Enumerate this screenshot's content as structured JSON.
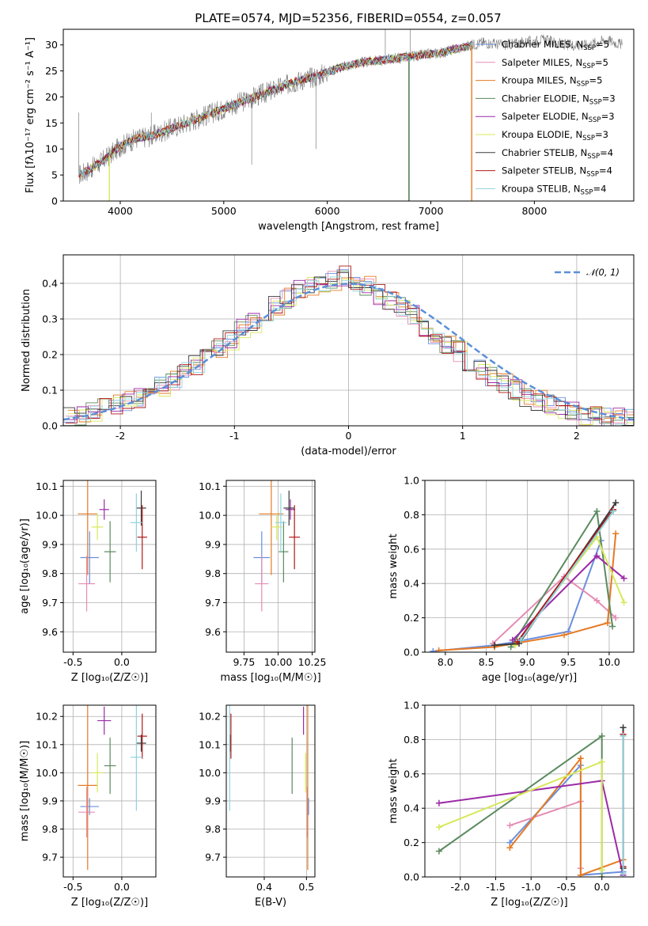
{
  "title": "PLATE=0574, MJD=52356, FIBERID=0554, z=0.057",
  "colors": {
    "data": "#7f7f7f",
    "models": [
      "#6a8fde",
      "#e58cb3",
      "#e67a22",
      "#5b8a5f",
      "#9b2aa6",
      "#d7e85a",
      "#3a3a3a",
      "#b01818",
      "#8fd3dc"
    ],
    "gauss": "#5b8fd8"
  },
  "chart_data": [
    {
      "name": "spectrum",
      "type": "line",
      "title": "PLATE=0574, MJD=52356, FIBERID=0554, z=0.057",
      "xlabel": "wavelength [Angstrom, rest frame]",
      "ylabel": "Flux [fλ10⁻¹⁷ erg cm⁻² s⁻¹ A⁻¹]",
      "xlim": [
        3450,
        8960
      ],
      "ylim": [
        0,
        33
      ],
      "xticks": [
        4000,
        5000,
        6000,
        7000,
        8000
      ],
      "yticks": [
        0,
        5,
        10,
        15,
        20,
        25,
        30
      ],
      "legend_position": "right",
      "legend": [
        "Chabrier MILES, N_SSP=5",
        "Salpeter MILES, N_SSP=5",
        "Kroupa MILES, N_SSP=5",
        "Chabrier ELODIE, N_SSP=3",
        "Salpeter ELODIE, N_SSP=3",
        "Kroupa ELODIE, N_SSP=3",
        "Chabrier STELIB, N_SSP=4",
        "Salpeter STELIB, N_SSP=4",
        "Kroupa STELIB, N_SSP=4"
      ],
      "legend_main": [
        "Chabrier MILES, N",
        "Salpeter MILES, N",
        "Kroupa MILES, N",
        "Chabrier ELODIE, N",
        "Salpeter ELODIE, N",
        "Kroupa ELODIE, N",
        "Chabrier STELIB, N",
        "Salpeter STELIB, N",
        "Kroupa STELIB, N"
      ],
      "legend_sub": "SSP",
      "legend_tail": [
        "=5",
        "=5",
        "=5",
        "=3",
        "=3",
        "=3",
        "=4",
        "=4",
        "=4"
      ],
      "continuum": [
        [
          3600,
          5
        ],
        [
          3700,
          6
        ],
        [
          3850,
          8
        ],
        [
          4000,
          10.5
        ],
        [
          4150,
          12
        ],
        [
          4300,
          12.5
        ],
        [
          4500,
          14
        ],
        [
          4700,
          15.5
        ],
        [
          4900,
          17
        ],
        [
          5100,
          18.5
        ],
        [
          5300,
          20
        ],
        [
          5500,
          21.5
        ],
        [
          5700,
          23
        ],
        [
          5900,
          24
        ],
        [
          6100,
          25.5
        ],
        [
          6300,
          26.5
        ],
        [
          6500,
          27
        ],
        [
          6700,
          27.5
        ],
        [
          6900,
          28
        ],
        [
          7100,
          28.5
        ],
        [
          7300,
          29.5
        ],
        [
          7500,
          30.5
        ],
        [
          7700,
          30
        ],
        [
          7900,
          30.5
        ],
        [
          8100,
          31
        ],
        [
          8300,
          30
        ],
        [
          8500,
          30
        ],
        [
          8700,
          31
        ],
        [
          8850,
          30
        ]
      ]
    },
    {
      "name": "residuals",
      "type": "histogram",
      "xlabel": "(data-model)/error",
      "ylabel": "Normed distribution",
      "xlim": [
        -2.5,
        2.5
      ],
      "ylim": [
        0,
        0.48
      ],
      "xticks": [
        -2,
        -1,
        0,
        1,
        2
      ],
      "yticks": [
        0.0,
        0.1,
        0.2,
        0.3,
        0.4
      ],
      "legend": [
        "𝒩(0, 1)"
      ],
      "series_profile": [
        0.03,
        0.03,
        0.04,
        0.06,
        0.06,
        0.07,
        0.08,
        0.09,
        0.11,
        0.13,
        0.15,
        0.17,
        0.19,
        0.22,
        0.24,
        0.27,
        0.29,
        0.32,
        0.34,
        0.36,
        0.38,
        0.39,
        0.4,
        0.41,
        0.42,
        0.4,
        0.39,
        0.37,
        0.35,
        0.33,
        0.31,
        0.28,
        0.26,
        0.23,
        0.21,
        0.18,
        0.16,
        0.14,
        0.12,
        0.1,
        0.08,
        0.07,
        0.06,
        0.05,
        0.04,
        0.03,
        0.03,
        0.02,
        0.02,
        0.02
      ]
    },
    {
      "name": "age_vs_Z",
      "type": "scatter",
      "xlabel": "Z [log₁₀(Z/Z☉)]",
      "ylabel": "age  [log₁₀(age/yr)]",
      "xlim": [
        -0.6,
        0.35
      ],
      "ylim": [
        9.53,
        10.12
      ],
      "xticks": [
        -0.5,
        0.0
      ],
      "yticks": [
        9.6,
        9.7,
        9.8,
        9.9,
        10.0,
        10.1
      ],
      "points": [
        {
          "x": -0.33,
          "y": 9.855,
          "dx": 0.19,
          "dy": 0.18
        },
        {
          "x": -0.36,
          "y": 9.765,
          "dx": 0.17,
          "dy": 0.19
        },
        {
          "x": -0.35,
          "y": 10.005,
          "dx": 0.2,
          "dy": 0.42
        },
        {
          "x": -0.12,
          "y": 9.875,
          "dx": 0.12,
          "dy": 0.21
        },
        {
          "x": -0.18,
          "y": 10.02,
          "dx": 0.1,
          "dy": 0.07
        },
        {
          "x": -0.25,
          "y": 9.96,
          "dx": 0.12,
          "dy": 0.09
        },
        {
          "x": 0.2,
          "y": 10.025,
          "dx": 0.1,
          "dy": 0.12
        },
        {
          "x": 0.21,
          "y": 9.925,
          "dx": 0.1,
          "dy": 0.22
        },
        {
          "x": 0.15,
          "y": 9.975,
          "dx": 0.12,
          "dy": 0.2
        }
      ]
    },
    {
      "name": "age_vs_mass",
      "type": "scatter",
      "xlabel": "mass [log₁₀(M/M☉)]",
      "ylabel": "",
      "xlim": [
        9.62,
        10.27
      ],
      "ylim": [
        9.53,
        10.12
      ],
      "xticks": [
        9.75,
        10.0,
        10.25
      ],
      "yticks": [
        9.6,
        9.7,
        9.8,
        9.9,
        10.0,
        10.1
      ],
      "points": [
        {
          "x": 9.88,
          "y": 9.855,
          "dx": 0.12,
          "dy": 0.18
        },
        {
          "x": 9.88,
          "y": 9.765,
          "dx": 0.1,
          "dy": 0.19
        },
        {
          "x": 9.95,
          "y": 10.005,
          "dx": 0.18,
          "dy": 0.42
        },
        {
          "x": 10.04,
          "y": 9.875,
          "dx": 0.07,
          "dy": 0.21
        },
        {
          "x": 10.09,
          "y": 10.02,
          "dx": 0.07,
          "dy": 0.07
        },
        {
          "x": 9.99,
          "y": 9.96,
          "dx": 0.08,
          "dy": 0.09
        },
        {
          "x": 10.08,
          "y": 10.025,
          "dx": 0.08,
          "dy": 0.12
        },
        {
          "x": 10.12,
          "y": 9.925,
          "dx": 0.08,
          "dy": 0.22
        },
        {
          "x": 10.02,
          "y": 9.975,
          "dx": 0.08,
          "dy": 0.2
        }
      ]
    },
    {
      "name": "mw_vs_age",
      "type": "line",
      "xlabel": "age  [log₁₀(age/yr)]",
      "ylabel": "mass weight",
      "xlim": [
        7.75,
        10.3
      ],
      "ylim": [
        0,
        1.0
      ],
      "xticks": [
        8.0,
        8.5,
        9.0,
        9.5,
        10.0
      ],
      "yticks": [
        0.0,
        0.2,
        0.4,
        0.6,
        0.8,
        1.0
      ],
      "series": [
        {
          "x": [
            7.85,
            8.6,
            8.85,
            9.5,
            9.9
          ],
          "y": [
            0.005,
            0.04,
            0.06,
            0.12,
            0.65
          ]
        },
        {
          "x": [
            8.58,
            9.45,
            9.85,
            10.08
          ],
          "y": [
            0.05,
            0.44,
            0.3,
            0.2
          ]
        },
        {
          "x": [
            7.92,
            8.6,
            9.45,
            9.98,
            10.08
          ],
          "y": [
            0.01,
            0.03,
            0.1,
            0.17,
            0.69
          ]
        },
        {
          "x": [
            8.8,
            9.85,
            10.04
          ],
          "y": [
            0.03,
            0.82,
            0.15
          ]
        },
        {
          "x": [
            8.82,
            9.85,
            10.18
          ],
          "y": [
            0.07,
            0.56,
            0.43
          ]
        },
        {
          "x": [
            8.85,
            9.85,
            10.18
          ],
          "y": [
            0.04,
            0.67,
            0.29
          ]
        },
        {
          "x": [
            8.6,
            8.9,
            10.08
          ],
          "y": [
            0.04,
            0.05,
            0.87
          ]
        },
        {
          "x": [
            8.88,
            10.05
          ],
          "y": [
            0.06,
            0.83
          ]
        },
        {
          "x": [
            8.92,
            10.05
          ],
          "y": [
            0.07,
            0.82
          ]
        }
      ]
    },
    {
      "name": "mass_vs_Z",
      "type": "scatter",
      "xlabel": "Z [log₁₀(Z/Z☉)]",
      "ylabel": "mass [log₁₀(M/M☉)]",
      "xlim": [
        -0.6,
        0.35
      ],
      "ylim": [
        9.63,
        10.24
      ],
      "xticks": [
        -0.5,
        0.0
      ],
      "yticks": [
        9.7,
        9.8,
        9.9,
        10.0,
        10.1,
        10.2
      ],
      "points": [
        {
          "x": -0.33,
          "y": 9.88,
          "dx": 0.19,
          "dy": 0.06
        },
        {
          "x": -0.36,
          "y": 9.86,
          "dx": 0.17,
          "dy": 0.18
        },
        {
          "x": -0.35,
          "y": 9.955,
          "dx": 0.2,
          "dy": 0.6
        },
        {
          "x": -0.12,
          "y": 10.025,
          "dx": 0.12,
          "dy": 0.2
        },
        {
          "x": -0.18,
          "y": 10.185,
          "dx": 0.14,
          "dy": 0.1
        },
        {
          "x": -0.25,
          "y": 10.0,
          "dx": 0.12,
          "dy": 0.14
        },
        {
          "x": 0.2,
          "y": 10.105,
          "dx": 0.1,
          "dy": 0.06
        },
        {
          "x": 0.21,
          "y": 10.13,
          "dx": 0.1,
          "dy": 0.16
        },
        {
          "x": 0.15,
          "y": 10.055,
          "dx": 0.12,
          "dy": 0.38
        }
      ]
    },
    {
      "name": "mass_vs_ebv",
      "type": "scatter",
      "xlabel": "E(B-V)",
      "ylabel": "",
      "xlim": [
        0.31,
        0.52
      ],
      "ylim": [
        9.63,
        10.24
      ],
      "xticks": [
        0.4,
        0.5
      ],
      "yticks": [
        9.7,
        9.8,
        9.9,
        10.0,
        10.1,
        10.2
      ],
      "points": [
        {
          "x": 0.505,
          "y": 9.88,
          "dx": 0.0,
          "dy": 0.06
        },
        {
          "x": 0.502,
          "y": 9.86,
          "dx": 0.0,
          "dy": 0.18
        },
        {
          "x": 0.503,
          "y": 9.955,
          "dx": 0.0,
          "dy": 0.6
        },
        {
          "x": 0.466,
          "y": 10.025,
          "dx": 0.0,
          "dy": 0.2
        },
        {
          "x": 0.493,
          "y": 10.185,
          "dx": 0.0,
          "dy": 0.1
        },
        {
          "x": 0.498,
          "y": 10.0,
          "dx": 0.0,
          "dy": 0.14
        },
        {
          "x": 0.319,
          "y": 10.105,
          "dx": 0.0,
          "dy": 0.06
        },
        {
          "x": 0.321,
          "y": 10.13,
          "dx": 0.0,
          "dy": 0.16
        },
        {
          "x": 0.318,
          "y": 10.055,
          "dx": 0.0,
          "dy": 0.38
        }
      ]
    },
    {
      "name": "mw_vs_Z",
      "type": "line",
      "xlabel": "Z [log₁₀(Z/Z☉)]",
      "ylabel": "mass weight",
      "xlim": [
        -2.5,
        0.45
      ],
      "ylim": [
        0,
        1.0
      ],
      "xticks": [
        -2.0,
        -1.5,
        -1.0,
        -0.5,
        0.0
      ],
      "yticks": [
        0.0,
        0.2,
        0.4,
        0.6,
        0.8,
        1.0
      ],
      "series": [
        {
          "x": [
            -1.3,
            -0.3,
            -0.3,
            0.3
          ],
          "y": [
            0.2,
            0.65,
            0.01,
            0.03
          ]
        },
        {
          "x": [
            -1.3,
            -0.3,
            -0.3
          ],
          "y": [
            0.3,
            0.44,
            0.05
          ]
        },
        {
          "x": [
            -1.3,
            -0.3,
            -0.3,
            0.3
          ],
          "y": [
            0.17,
            0.69,
            0.01,
            0.1
          ]
        },
        {
          "x": [
            -2.3,
            0.0,
            0.0
          ],
          "y": [
            0.15,
            0.82,
            0.0
          ]
        },
        {
          "x": [
            -2.3,
            0.0,
            0.3
          ],
          "y": [
            0.43,
            0.56,
            0.01
          ]
        },
        {
          "x": [
            -2.3,
            0.0,
            0.0
          ],
          "y": [
            0.29,
            0.67,
            0.04
          ]
        },
        {
          "x": [
            0.3,
            0.3
          ],
          "y": [
            0.87,
            0.05
          ]
        },
        {
          "x": [
            0.3,
            0.3
          ],
          "y": [
            0.83,
            0.06
          ]
        },
        {
          "x": [
            0.3,
            0.3
          ],
          "y": [
            0.82,
            0.02
          ]
        }
      ]
    }
  ]
}
